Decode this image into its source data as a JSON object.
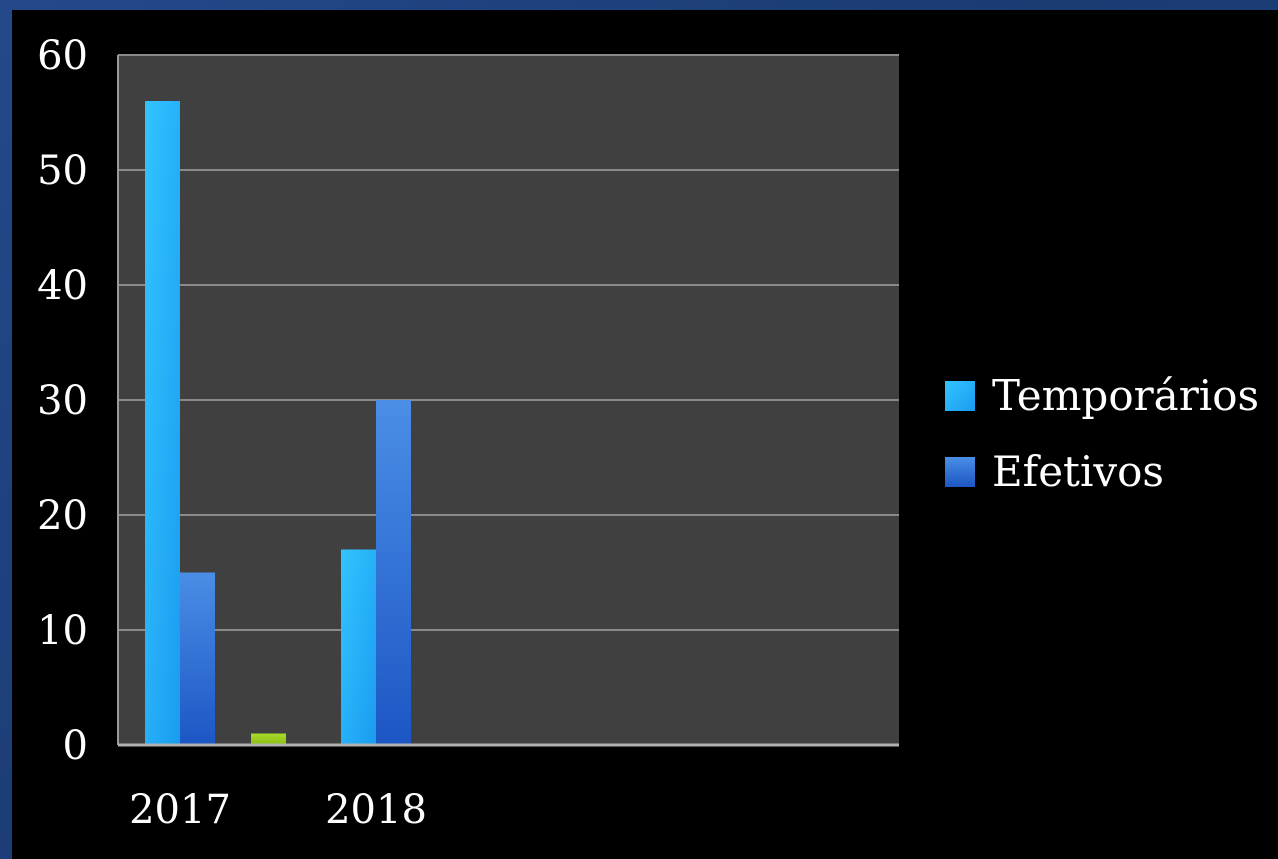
{
  "chart_data": {
    "type": "bar",
    "categories": [
      "2017",
      "2018"
    ],
    "series": [
      {
        "name": "Temporários",
        "values": [
          56,
          17
        ],
        "color": "#2cb5ff"
      },
      {
        "name": "Efetivos",
        "values": [
          15,
          30
        ],
        "color": "#3a7fe0"
      },
      {
        "name": "",
        "values": [
          1,
          0
        ],
        "color": "#9acd1e"
      }
    ],
    "y_ticks": [
      "0",
      "10",
      "20",
      "30",
      "40",
      "50",
      "60"
    ],
    "ylim": [
      0,
      60
    ],
    "title": "",
    "xlabel": "",
    "ylabel": "",
    "grid": true,
    "legend_position": "right",
    "plot_background": "#404040",
    "page_background": "#000000",
    "frame_color": "#1f4282"
  }
}
